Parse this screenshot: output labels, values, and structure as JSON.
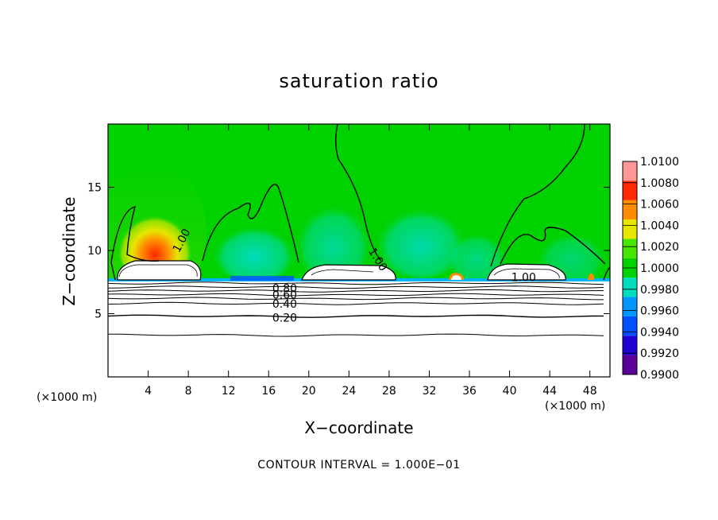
{
  "chart_data": {
    "type": "heatmap",
    "title": "saturation ratio",
    "xlabel": "X−coordinate",
    "ylabel": "Z−coordinate",
    "x_unit_left": "(×1000 m)",
    "x_unit_right": "(×1000 m)",
    "footer": "CONTOUR INTERVAL = 1.000E−01",
    "xlim": [
      0,
      50
    ],
    "ylim": [
      0,
      20
    ],
    "xticks": [
      4,
      8,
      12,
      16,
      20,
      24,
      28,
      32,
      36,
      40,
      44,
      48
    ],
    "xtick_labels": [
      "4",
      "8",
      "12",
      "16",
      "20",
      "24",
      "28",
      "32",
      "36",
      "40",
      "44",
      "48"
    ],
    "yticks": [
      5,
      10,
      15
    ],
    "ytick_labels": [
      "5",
      "10",
      "15"
    ],
    "colorbar": {
      "levels": [
        0.99,
        0.992,
        0.994,
        0.996,
        0.998,
        1.0,
        1.002,
        1.004,
        1.006,
        1.008,
        1.01
      ],
      "labels": [
        "0.9900",
        "0.9920",
        "0.9940",
        "0.9960",
        "0.9980",
        "1.0000",
        "1.0020",
        "1.0040",
        "1.0060",
        "1.0080",
        "1.0100"
      ],
      "colors": [
        "#5a0096",
        "#1e00d2",
        "#0050ff",
        "#0096ff",
        "#00dcbe",
        "#00d200",
        "#46e600",
        "#e6e600",
        "#ff8c00",
        "#ff2800",
        "#ff9696"
      ]
    },
    "background_value": 1.0,
    "contour_labels": [
      {
        "text": "1.00",
        "x": 7.3,
        "z": 10.8
      },
      {
        "text": "1.00",
        "x": 26.9,
        "z": 9.3
      },
      {
        "text": "1.00",
        "x": 41.4,
        "z": 7.9
      },
      {
        "text": "0.80",
        "x": 17.6,
        "z": 7.0
      },
      {
        "text": "0.60",
        "x": 17.6,
        "z": 6.5
      },
      {
        "text": "0.40",
        "x": 17.6,
        "z": 5.8
      },
      {
        "text": "0.20",
        "x": 17.6,
        "z": 4.7
      }
    ],
    "contour_lines_z": [
      7.4,
      7.1,
      6.8,
      6.5,
      6.2,
      5.8,
      4.8,
      3.3
    ]
  }
}
